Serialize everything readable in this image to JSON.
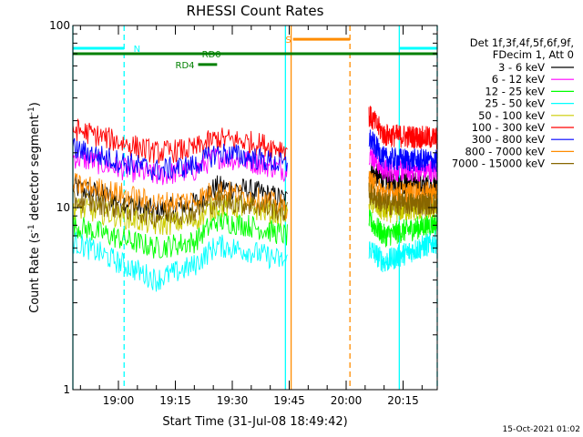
{
  "chart_data": {
    "type": "line",
    "title": "RHESSI Count Rates",
    "xlabel": "Start Time (31-Jul-08 18:49:42)",
    "ylabel": "Count Rate (s",
    "ylabel_sup": "-1",
    "ylabel_rest": " detector segment",
    "ylabel_sup2": "-1",
    "ylabel_close": ")",
    "y_scale": "log",
    "ylim": [
      1,
      100
    ],
    "y_ticks": [
      {
        "value": 1,
        "label": "1"
      },
      {
        "value": 10,
        "label": "10"
      },
      {
        "value": 100,
        "label": "100"
      }
    ],
    "xlim_minutes": [
      -12,
      84
    ],
    "x_ticks": [
      {
        "value": 0,
        "label": "19:00"
      },
      {
        "value": 15,
        "label": "19:15"
      },
      {
        "value": 30,
        "label": "19:30"
      },
      {
        "value": 45,
        "label": "19:45"
      },
      {
        "value": 60,
        "label": "20:00"
      },
      {
        "value": 75,
        "label": "20:15"
      }
    ],
    "x_units_note": "minutes relative to 19:00",
    "gap_minutes": [
      44.5,
      66
    ],
    "legend_header": [
      "Det 1f,3f,4f,5f,6f,9f,",
      "FDecim 1, Att 0"
    ],
    "series": [
      {
        "name": "3 - 6 keV",
        "color": "#000000",
        "points": [
          [
            -12,
            13
          ],
          [
            0,
            11
          ],
          [
            10,
            9.5
          ],
          [
            20,
            10.5
          ],
          [
            26,
            13
          ],
          [
            34,
            12.5
          ],
          [
            44.5,
            11
          ],
          [
            66,
            16
          ],
          [
            70,
            14
          ],
          [
            84,
            13
          ]
        ]
      },
      {
        "name": "6 - 12 keV",
        "color": "#ff00ff",
        "points": [
          [
            -12,
            19
          ],
          [
            0,
            16.5
          ],
          [
            10,
            15
          ],
          [
            20,
            16
          ],
          [
            26,
            19
          ],
          [
            34,
            18
          ],
          [
            44.5,
            16
          ],
          [
            66,
            20
          ],
          [
            70,
            16
          ],
          [
            84,
            16
          ]
        ]
      },
      {
        "name": "12 - 25 keV",
        "color": "#00ff00",
        "points": [
          [
            -12,
            8
          ],
          [
            0,
            6.8
          ],
          [
            10,
            6
          ],
          [
            20,
            6.5
          ],
          [
            26,
            8.5
          ],
          [
            34,
            8
          ],
          [
            44.5,
            7
          ],
          [
            66,
            8.5
          ],
          [
            70,
            7
          ],
          [
            84,
            8.2
          ]
        ]
      },
      {
        "name": "25 - 50 keV",
        "color": "#00ffff",
        "points": [
          [
            -12,
            6.5
          ],
          [
            0,
            5
          ],
          [
            10,
            4
          ],
          [
            20,
            4.8
          ],
          [
            26,
            6.2
          ],
          [
            34,
            5.8
          ],
          [
            44.5,
            5
          ],
          [
            66,
            6
          ],
          [
            70,
            5
          ],
          [
            84,
            6.5
          ]
        ]
      },
      {
        "name": "50 - 100 keV",
        "color": "#cccc00",
        "points": [
          [
            -12,
            10
          ],
          [
            0,
            9
          ],
          [
            10,
            8
          ],
          [
            20,
            8.5
          ],
          [
            26,
            10.2
          ],
          [
            34,
            10
          ],
          [
            44.5,
            9
          ],
          [
            66,
            11
          ],
          [
            70,
            9.5
          ],
          [
            84,
            10
          ]
        ]
      },
      {
        "name": "100 - 300 keV",
        "color": "#ff0000",
        "points": [
          [
            -12,
            27
          ],
          [
            0,
            23
          ],
          [
            10,
            20
          ],
          [
            20,
            21
          ],
          [
            26,
            24
          ],
          [
            34,
            23
          ],
          [
            44.5,
            21
          ],
          [
            66,
            32
          ],
          [
            70,
            25
          ],
          [
            84,
            24
          ]
        ]
      },
      {
        "name": "300 - 800 keV",
        "color": "#0000ff",
        "points": [
          [
            -12,
            21
          ],
          [
            0,
            18
          ],
          [
            10,
            16
          ],
          [
            20,
            17
          ],
          [
            26,
            20
          ],
          [
            34,
            19
          ],
          [
            44.5,
            17
          ],
          [
            66,
            24
          ],
          [
            70,
            18.5
          ],
          [
            84,
            18
          ]
        ]
      },
      {
        "name": "800 - 7000 keV",
        "color": "#ff8c00",
        "points": [
          [
            -12,
            13.5
          ],
          [
            0,
            12
          ],
          [
            10,
            10.5
          ],
          [
            20,
            11
          ],
          [
            26,
            12.5
          ],
          [
            34,
            11.5
          ],
          [
            44.5,
            10
          ],
          [
            66,
            14
          ],
          [
            70,
            12
          ],
          [
            84,
            12
          ]
        ]
      },
      {
        "name": "7000 - 15000 keV",
        "color": "#886600",
        "points": [
          [
            -12,
            11
          ],
          [
            0,
            10
          ],
          [
            10,
            9
          ],
          [
            20,
            9.5
          ],
          [
            26,
            11
          ],
          [
            34,
            10.5
          ],
          [
            44.5,
            9.5
          ],
          [
            66,
            12
          ],
          [
            70,
            10.5
          ],
          [
            84,
            10.5
          ]
        ]
      }
    ],
    "vertical_lines": [
      {
        "x": -12,
        "color": "#00ffff",
        "style": "solid"
      },
      {
        "x": 1.5,
        "color": "#00ffff",
        "style": "dashed"
      },
      {
        "x": 44,
        "color": "#00ffff",
        "style": "solid"
      },
      {
        "x": 45.5,
        "color": "#ff8c00",
        "style": "solid"
      },
      {
        "x": 61,
        "color": "#ff8c00",
        "style": "dashed"
      },
      {
        "x": 74,
        "color": "#00ffff",
        "style": "solid"
      },
      {
        "x": 84,
        "color": "#00ffff",
        "style": "dashed"
      }
    ],
    "flag_bars": [
      {
        "label": "N",
        "color": "#00ffff",
        "y": 75,
        "x0": -12,
        "x1": 1.5,
        "label_x": 4
      },
      {
        "label": "",
        "color": "#00ffff",
        "y": 75,
        "x0": 74,
        "x1": 84
      },
      {
        "label": "S",
        "color": "#ff8c00",
        "y": 84,
        "x0": 46,
        "x1": 61,
        "label_x": 44
      },
      {
        "label": "RD0",
        "color": "#008000",
        "y": 70,
        "x0": -12,
        "x1": 84,
        "label_x": 22
      },
      {
        "label": "RD4",
        "color": "#008000",
        "y": 61,
        "x0": 21,
        "x1": 26,
        "label_x": 15
      }
    ]
  },
  "timestamp": "15-Oct-2021 01:02"
}
